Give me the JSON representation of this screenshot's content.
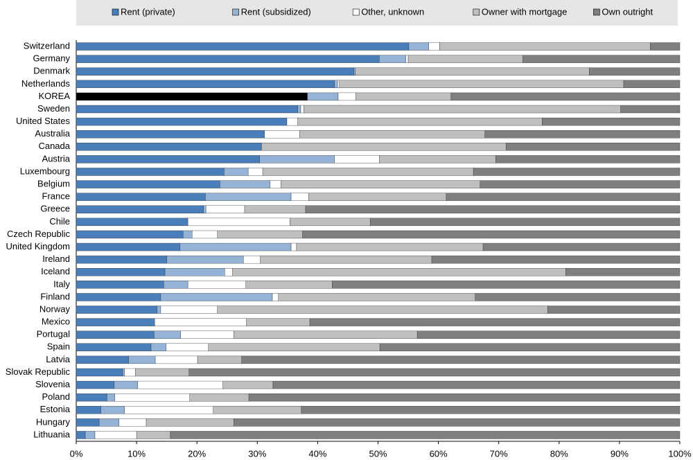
{
  "chart_data": {
    "type": "stacked-barh",
    "categories": [
      "Switzerland",
      "Germany",
      "Denmark",
      "Netherlands",
      "KOREA",
      "Sweden",
      "United States",
      "Australia",
      "Canada",
      "Austria",
      "Luxembourg",
      "Belgium",
      "France",
      "Greece",
      "Chile",
      "Czech Republic",
      "United Kingdom",
      "Ireland",
      "Iceland",
      "Italy",
      "Finland",
      "Norway",
      "Mexico",
      "Portugal",
      "Spain",
      "Latvia",
      "Slovak Republic",
      "Slovenia",
      "Poland",
      "Estonia",
      "Hungary",
      "Lithuania"
    ],
    "series": [
      {
        "name": "Rent (private)",
        "color": "#4a7ebb",
        "values": [
          55.1,
          50.2,
          46.0,
          42.8,
          38.3,
          36.7,
          34.9,
          31.2,
          30.7,
          30.4,
          24.5,
          23.8,
          21.4,
          21.1,
          18.5,
          17.7,
          17.2,
          15.0,
          14.7,
          14.5,
          14.0,
          13.4,
          13.0,
          12.9,
          12.4,
          8.7,
          7.7,
          6.3,
          5.1,
          4.1,
          3.8,
          1.5
        ]
      },
      {
        "name": "Rent (subsidized)",
        "color": "#95b3d7",
        "values": [
          3.3,
          4.4,
          0.2,
          0.5,
          5.1,
          0.5,
          0,
          0,
          0,
          12.4,
          4.0,
          8.3,
          14.2,
          0.4,
          0,
          1.5,
          18.4,
          12.7,
          9.9,
          4.0,
          18.5,
          0.6,
          0,
          4.4,
          2.5,
          4.4,
          0.3,
          3.9,
          1.3,
          3.9,
          3.3,
          1.6
        ]
      },
      {
        "name": "Other, unknown",
        "color": "#ffffff",
        "values": [
          1.8,
          0.4,
          0,
          0.3,
          2.9,
          0.5,
          1.8,
          5.8,
          0,
          7.4,
          2.4,
          1.8,
          2.9,
          6.4,
          16.9,
          4.2,
          0.9,
          2.8,
          1.3,
          9.6,
          1.0,
          9.4,
          15.2,
          8.8,
          7.0,
          7.0,
          1.8,
          14.1,
          12.4,
          14.7,
          4.5,
          6.9
        ]
      },
      {
        "name": "Owner with mortgage",
        "color": "#bfbfbf",
        "values": [
          34.9,
          19.0,
          38.8,
          47.1,
          15.8,
          52.5,
          40.5,
          30.7,
          40.5,
          19.3,
          34.9,
          33.0,
          22.8,
          10.1,
          13.3,
          14.1,
          30.9,
          28.4,
          55.2,
          14.3,
          32.6,
          54.7,
          10.5,
          30.4,
          28.4,
          7.3,
          8.9,
          8.3,
          9.8,
          14.6,
          14.5,
          5.6
        ]
      },
      {
        "name": "Own outright",
        "color": "#7f7f7f",
        "values": [
          4.9,
          26.0,
          15.0,
          9.3,
          37.9,
          9.8,
          22.8,
          32.3,
          28.8,
          30.5,
          34.2,
          33.1,
          38.7,
          62.0,
          51.3,
          62.5,
          32.6,
          41.1,
          18.9,
          57.6,
          33.9,
          21.9,
          61.3,
          43.5,
          49.7,
          72.6,
          81.3,
          67.4,
          71.4,
          62.7,
          73.9,
          84.4
        ]
      }
    ],
    "highlight": {
      "category": "KOREA",
      "color": "#000000"
    },
    "xlim": [
      0,
      100
    ],
    "xticks": [
      {
        "value": 0,
        "label": "0%"
      },
      {
        "value": 10,
        "label": "10%"
      },
      {
        "value": 20,
        "label": "20%"
      },
      {
        "value": 30,
        "label": "30%"
      },
      {
        "value": 40,
        "label": "40%"
      },
      {
        "value": 50,
        "label": "50%"
      },
      {
        "value": 60,
        "label": "60%"
      },
      {
        "value": 70,
        "label": "70%"
      },
      {
        "value": 80,
        "label": "80%"
      },
      {
        "value": 90,
        "label": "90%"
      },
      {
        "value": 100,
        "label": "100%"
      }
    ],
    "legend": "top"
  }
}
